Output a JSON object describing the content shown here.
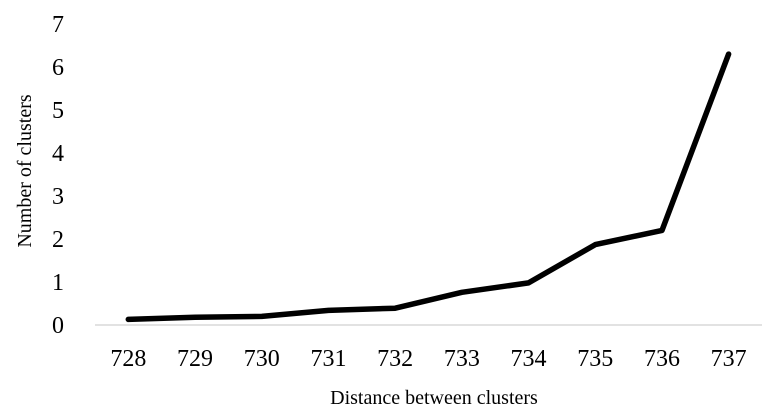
{
  "chart_data": {
    "type": "line",
    "title": "",
    "xlabel": "Distance between clusters",
    "ylabel": "Number of clusters",
    "categories": [
      "728",
      "729",
      "730",
      "731",
      "732",
      "733",
      "734",
      "735",
      "736",
      "737"
    ],
    "series": [
      {
        "values": [
          0.13,
          0.18,
          0.2,
          0.34,
          0.39,
          0.76,
          0.98,
          1.87,
          2.2,
          6.3
        ]
      }
    ],
    "ylim": [
      0,
      7
    ],
    "yticks": [
      "0",
      "1",
      "2",
      "3",
      "4",
      "5",
      "6",
      "7"
    ],
    "grid": false,
    "legend": "none",
    "line_color": "#000000"
  }
}
